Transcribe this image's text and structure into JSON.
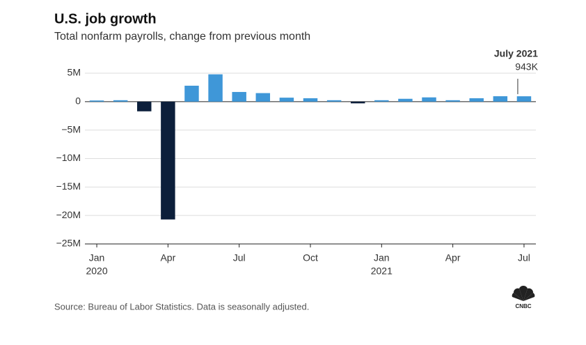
{
  "chart_data": {
    "type": "bar",
    "title": "U.S. job growth",
    "subtitle": "Total nonfarm payrolls, change from previous month",
    "source": "Source: Bureau of Labor Statistics. Data is seasonally adjusted.",
    "logo_text": "CNBC",
    "categories": [
      "Jan",
      null,
      null,
      "Apr",
      null,
      null,
      "Jul",
      null,
      null,
      "Oct",
      null,
      null,
      "Jan",
      null,
      null,
      "Apr",
      null,
      null,
      "Jul"
    ],
    "years": [
      "2020",
      null,
      null,
      null,
      null,
      null,
      null,
      null,
      null,
      null,
      null,
      null,
      "2021",
      null,
      null,
      null,
      null,
      null,
      null
    ],
    "values": [
      0.2,
      0.25,
      -1.7,
      -20.7,
      2.8,
      4.8,
      1.7,
      1.5,
      0.7,
      0.6,
      0.25,
      -0.3,
      0.25,
      0.5,
      0.75,
      0.25,
      0.6,
      0.95,
      0.943
    ],
    "value_labels": [
      null,
      null,
      null,
      null,
      null,
      null,
      null,
      null,
      null,
      null,
      null,
      null,
      null,
      null,
      null,
      null,
      null,
      null,
      "943K"
    ],
    "annotation_title": "July 2021",
    "color": "#3f97d8",
    "negative_color": "#0c1f3b",
    "ylim": [
      -25,
      5
    ],
    "yticks": [
      {
        "value": -25,
        "label": "−25M"
      },
      {
        "value": -20,
        "label": "−20M"
      },
      {
        "value": -15,
        "label": "−15M"
      },
      {
        "value": -10,
        "label": "−10M"
      },
      {
        "value": -5,
        "label": "−5M"
      },
      0,
      {
        "value": 5,
        "label": "5M"
      }
    ],
    "grid": true
  }
}
